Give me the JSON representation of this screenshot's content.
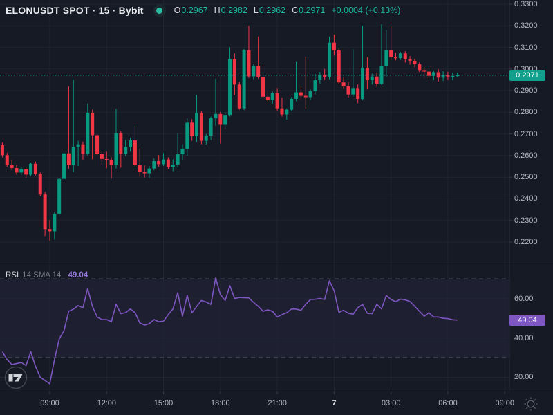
{
  "header": {
    "symbol_title": "ELONUSDT SPOT · 15 · Bybit",
    "ohlc": {
      "o_label": "O",
      "o": "0.2967",
      "h_label": "H",
      "h": "0.2982",
      "l_label": "L",
      "l": "0.2962",
      "c_label": "C",
      "c": "0.2971",
      "change": "+0.0004 (+0.13%)"
    }
  },
  "price_scale": {
    "labels": [
      "0.3300",
      "0.3200",
      "0.3100",
      "0.3000",
      "0.2900",
      "0.2800",
      "0.2700",
      "0.2600",
      "0.2500",
      "0.2400",
      "0.2300",
      "0.2200"
    ],
    "current_price_label": "0.2971"
  },
  "rsi_pane": {
    "title": "RSI",
    "params": "14 SMA 14",
    "value_label": "49.04",
    "scale_labels": [
      "60.00",
      "40.00",
      "20.00"
    ]
  },
  "icons": {
    "symbol_logo": "teal-dot-logo",
    "watermark": "tradingview-logo",
    "bottom_right": "sun-icon"
  },
  "colors": {
    "bg": "#161a25",
    "grid": "#1f2431",
    "divider": "#242938",
    "up": "#089981",
    "down": "#f23645",
    "price_line": "#1aa893",
    "price_label_bg": "#12a08c",
    "rsi_line": "#7e57c2",
    "rsi_label_bg": "#7e57c2",
    "band_fill": "rgba(126,87,194,0.09)",
    "dashed_level": "#787b86",
    "axis_text": "#b2b5be",
    "icon_gray": "#5a5f6b"
  },
  "chart_data": {
    "type": "candlestick",
    "title": "ELONUSDT SPOT 15m Bybit with RSI(14) sub-pane",
    "interval_minutes": 15,
    "price_ylim": [
      0.2101,
      0.3319
    ],
    "rsi_ylim": [
      13.5,
      77.4
    ],
    "current_price": 0.2971,
    "rsi_current": 49.04,
    "rsi_bands": [
      70,
      30
    ],
    "rsi_gridlines": [
      60,
      40,
      20
    ],
    "time_marks": [
      {
        "i": 10,
        "label": "09:00",
        "bold": false
      },
      {
        "i": 22,
        "label": "12:00",
        "bold": false
      },
      {
        "i": 34,
        "label": "15:00",
        "bold": false
      },
      {
        "i": 46,
        "label": "18:00",
        "bold": false
      },
      {
        "i": 58,
        "label": "21:00",
        "bold": false
      },
      {
        "i": 70,
        "label": "7",
        "bold": true
      },
      {
        "i": 82,
        "label": "03:00",
        "bold": false
      },
      {
        "i": 94,
        "label": "06:00",
        "bold": false
      },
      {
        "i": 106,
        "label": "09:00",
        "bold": false
      }
    ],
    "candles_ohlc": [
      [
        0.2648,
        0.266,
        0.2592,
        0.2602
      ],
      [
        0.2602,
        0.2612,
        0.2548,
        0.2556
      ],
      [
        0.2556,
        0.2578,
        0.2532,
        0.2542
      ],
      [
        0.2542,
        0.2556,
        0.2512,
        0.2522
      ],
      [
        0.2522,
        0.2545,
        0.251,
        0.2538
      ],
      [
        0.2538,
        0.2548,
        0.2498,
        0.2512
      ],
      [
        0.2512,
        0.2568,
        0.2505,
        0.2562
      ],
      [
        0.2562,
        0.2572,
        0.2508,
        0.2515
      ],
      [
        0.2515,
        0.2522,
        0.2412,
        0.242
      ],
      [
        0.242,
        0.2432,
        0.2228,
        0.226
      ],
      [
        0.226,
        0.2302,
        0.2206,
        0.225
      ],
      [
        0.225,
        0.2338,
        0.2212,
        0.233
      ],
      [
        0.233,
        0.2498,
        0.232,
        0.2492
      ],
      [
        0.2492,
        0.2618,
        0.2482,
        0.261
      ],
      [
        0.261,
        0.292,
        0.2538,
        0.2556
      ],
      [
        0.2556,
        0.295,
        0.2524,
        0.264
      ],
      [
        0.264,
        0.2668,
        0.2552,
        0.2652
      ],
      [
        0.2652,
        0.2664,
        0.258,
        0.2608
      ],
      [
        0.2608,
        0.284,
        0.26,
        0.2798
      ],
      [
        0.2798,
        0.2812,
        0.2582,
        0.2694
      ],
      [
        0.2694,
        0.2704,
        0.2552,
        0.2606
      ],
      [
        0.2606,
        0.2622,
        0.2558,
        0.2584
      ],
      [
        0.2584,
        0.2618,
        0.2542,
        0.2578
      ],
      [
        0.2578,
        0.2592,
        0.2494,
        0.2556
      ],
      [
        0.2556,
        0.2816,
        0.254,
        0.2704
      ],
      [
        0.2704,
        0.2712,
        0.2544,
        0.2608
      ],
      [
        0.2608,
        0.2672,
        0.2598,
        0.264
      ],
      [
        0.264,
        0.2682,
        0.2618,
        0.267
      ],
      [
        0.267,
        0.2737,
        0.2548,
        0.2556
      ],
      [
        0.2556,
        0.2632,
        0.2502,
        0.2526
      ],
      [
        0.2526,
        0.2556,
        0.2498,
        0.2518
      ],
      [
        0.2518,
        0.2552,
        0.2496,
        0.254
      ],
      [
        0.254,
        0.2586,
        0.2532,
        0.2574
      ],
      [
        0.2574,
        0.2602,
        0.2548,
        0.256
      ],
      [
        0.256,
        0.2611,
        0.2552,
        0.2582
      ],
      [
        0.2582,
        0.2592,
        0.2538,
        0.2548
      ],
      [
        0.2548,
        0.2582,
        0.2528,
        0.2558
      ],
      [
        0.2558,
        0.2704,
        0.2545,
        0.2606
      ],
      [
        0.2606,
        0.2652,
        0.2578,
        0.263
      ],
      [
        0.263,
        0.2772,
        0.26,
        0.2752
      ],
      [
        0.2752,
        0.2768,
        0.2668,
        0.269
      ],
      [
        0.269,
        0.288,
        0.2662,
        0.2796
      ],
      [
        0.2796,
        0.2806,
        0.2652,
        0.2668
      ],
      [
        0.2668,
        0.27,
        0.265,
        0.2692
      ],
      [
        0.2692,
        0.278,
        0.2672,
        0.2772
      ],
      [
        0.2772,
        0.2955,
        0.2738,
        0.2792
      ],
      [
        0.2792,
        0.2802,
        0.2656,
        0.2742
      ],
      [
        0.2742,
        0.2795,
        0.272,
        0.2788
      ],
      [
        0.2788,
        0.31,
        0.278,
        0.3046
      ],
      [
        0.3046,
        0.3072,
        0.288,
        0.2928
      ],
      [
        0.2928,
        0.294,
        0.2812,
        0.2818
      ],
      [
        0.2818,
        0.3092,
        0.281,
        0.3086
      ],
      [
        0.3086,
        0.32,
        0.2958,
        0.2966
      ],
      [
        0.2966,
        0.3022,
        0.2952,
        0.3014
      ],
      [
        0.3014,
        0.315,
        0.2955,
        0.2962
      ],
      [
        0.2962,
        0.3015,
        0.2868,
        0.2872
      ],
      [
        0.2872,
        0.2902,
        0.2846,
        0.2856
      ],
      [
        0.2856,
        0.2896,
        0.284,
        0.2888
      ],
      [
        0.2888,
        0.2912,
        0.2808,
        0.2818
      ],
      [
        0.2818,
        0.2868,
        0.278,
        0.279
      ],
      [
        0.279,
        0.2818,
        0.2766,
        0.2812
      ],
      [
        0.2812,
        0.287,
        0.2806,
        0.2862
      ],
      [
        0.2862,
        0.3035,
        0.2852,
        0.2892
      ],
      [
        0.2892,
        0.292,
        0.2858,
        0.2876
      ],
      [
        0.2876,
        0.3057,
        0.2817,
        0.287
      ],
      [
        0.287,
        0.2905,
        0.2856,
        0.2898
      ],
      [
        0.2898,
        0.2977,
        0.2882,
        0.2948
      ],
      [
        0.2948,
        0.2986,
        0.2932,
        0.2972
      ],
      [
        0.2972,
        0.3,
        0.295,
        0.2962
      ],
      [
        0.2962,
        0.315,
        0.2952,
        0.3122
      ],
      [
        0.3122,
        0.3159,
        0.3062,
        0.3086
      ],
      [
        0.3086,
        0.3098,
        0.293,
        0.2938
      ],
      [
        0.2938,
        0.2962,
        0.2908,
        0.292
      ],
      [
        0.292,
        0.294,
        0.2868,
        0.2882
      ],
      [
        0.2882,
        0.309,
        0.2872,
        0.2912
      ],
      [
        0.2912,
        0.2928,
        0.2842,
        0.2862
      ],
      [
        0.2862,
        0.32,
        0.2856,
        0.3006
      ],
      [
        0.3006,
        0.3054,
        0.2908,
        0.2948
      ],
      [
        0.2948,
        0.2978,
        0.2928,
        0.2965
      ],
      [
        0.2965,
        0.2985,
        0.2918,
        0.2932
      ],
      [
        0.2932,
        0.3207,
        0.2926,
        0.3012
      ],
      [
        0.3012,
        0.318,
        0.2965,
        0.3088
      ],
      [
        0.3088,
        0.3197,
        0.3042,
        0.3055
      ],
      [
        0.3055,
        0.3075,
        0.304,
        0.305
      ],
      [
        0.305,
        0.3078,
        0.3042,
        0.3072
      ],
      [
        0.3072,
        0.3082,
        0.303,
        0.3046
      ],
      [
        0.3046,
        0.306,
        0.302,
        0.3038
      ],
      [
        0.3038,
        0.3048,
        0.3008,
        0.3022
      ],
      [
        0.3022,
        0.3032,
        0.2985,
        0.2995
      ],
      [
        0.2995,
        0.301,
        0.296,
        0.2988
      ],
      [
        0.2988,
        0.3005,
        0.2958,
        0.2968
      ],
      [
        0.2968,
        0.2992,
        0.295,
        0.2985
      ],
      [
        0.2985,
        0.2998,
        0.2942,
        0.296
      ],
      [
        0.296,
        0.299,
        0.2945,
        0.2972
      ],
      [
        0.2972,
        0.2988,
        0.295,
        0.2965
      ],
      [
        0.2965,
        0.2984,
        0.2948,
        0.2967
      ],
      [
        0.2967,
        0.2982,
        0.2962,
        0.2971
      ]
    ],
    "rsi_series": [
      33,
      29,
      26.5,
      27,
      27.5,
      26,
      33,
      25.5,
      20,
      18.4,
      16.7,
      29,
      39.5,
      43.6,
      53.5,
      54.6,
      56.4,
      55.3,
      65.1,
      56,
      50.6,
      49.3,
      49.3,
      48.2,
      57,
      52.3,
      52.8,
      54.7,
      52.8,
      47.6,
      46.5,
      47.2,
      49.3,
      48.2,
      48.5,
      51.8,
      54.7,
      63,
      51,
      61.6,
      52.8,
      56,
      59,
      58.2,
      57,
      70.4,
      62,
      59,
      66.5,
      60,
      60.5,
      60.4,
      60.3,
      58,
      56,
      53.5,
      54.2,
      53.5,
      50.6,
      51.8,
      52.8,
      54.7,
      54.6,
      54,
      57,
      59.5,
      59.6,
      60,
      59.5,
      69,
      64,
      53,
      54,
      52.5,
      52,
      55.3,
      57,
      52.5,
      52.3,
      57,
      54.7,
      61.5,
      59.5,
      58.4,
      59.7,
      59.3,
      58.5,
      56,
      53.5,
      51,
      52.8,
      50.6,
      50.6,
      50,
      49.8,
      49.2,
      49.04
    ]
  }
}
